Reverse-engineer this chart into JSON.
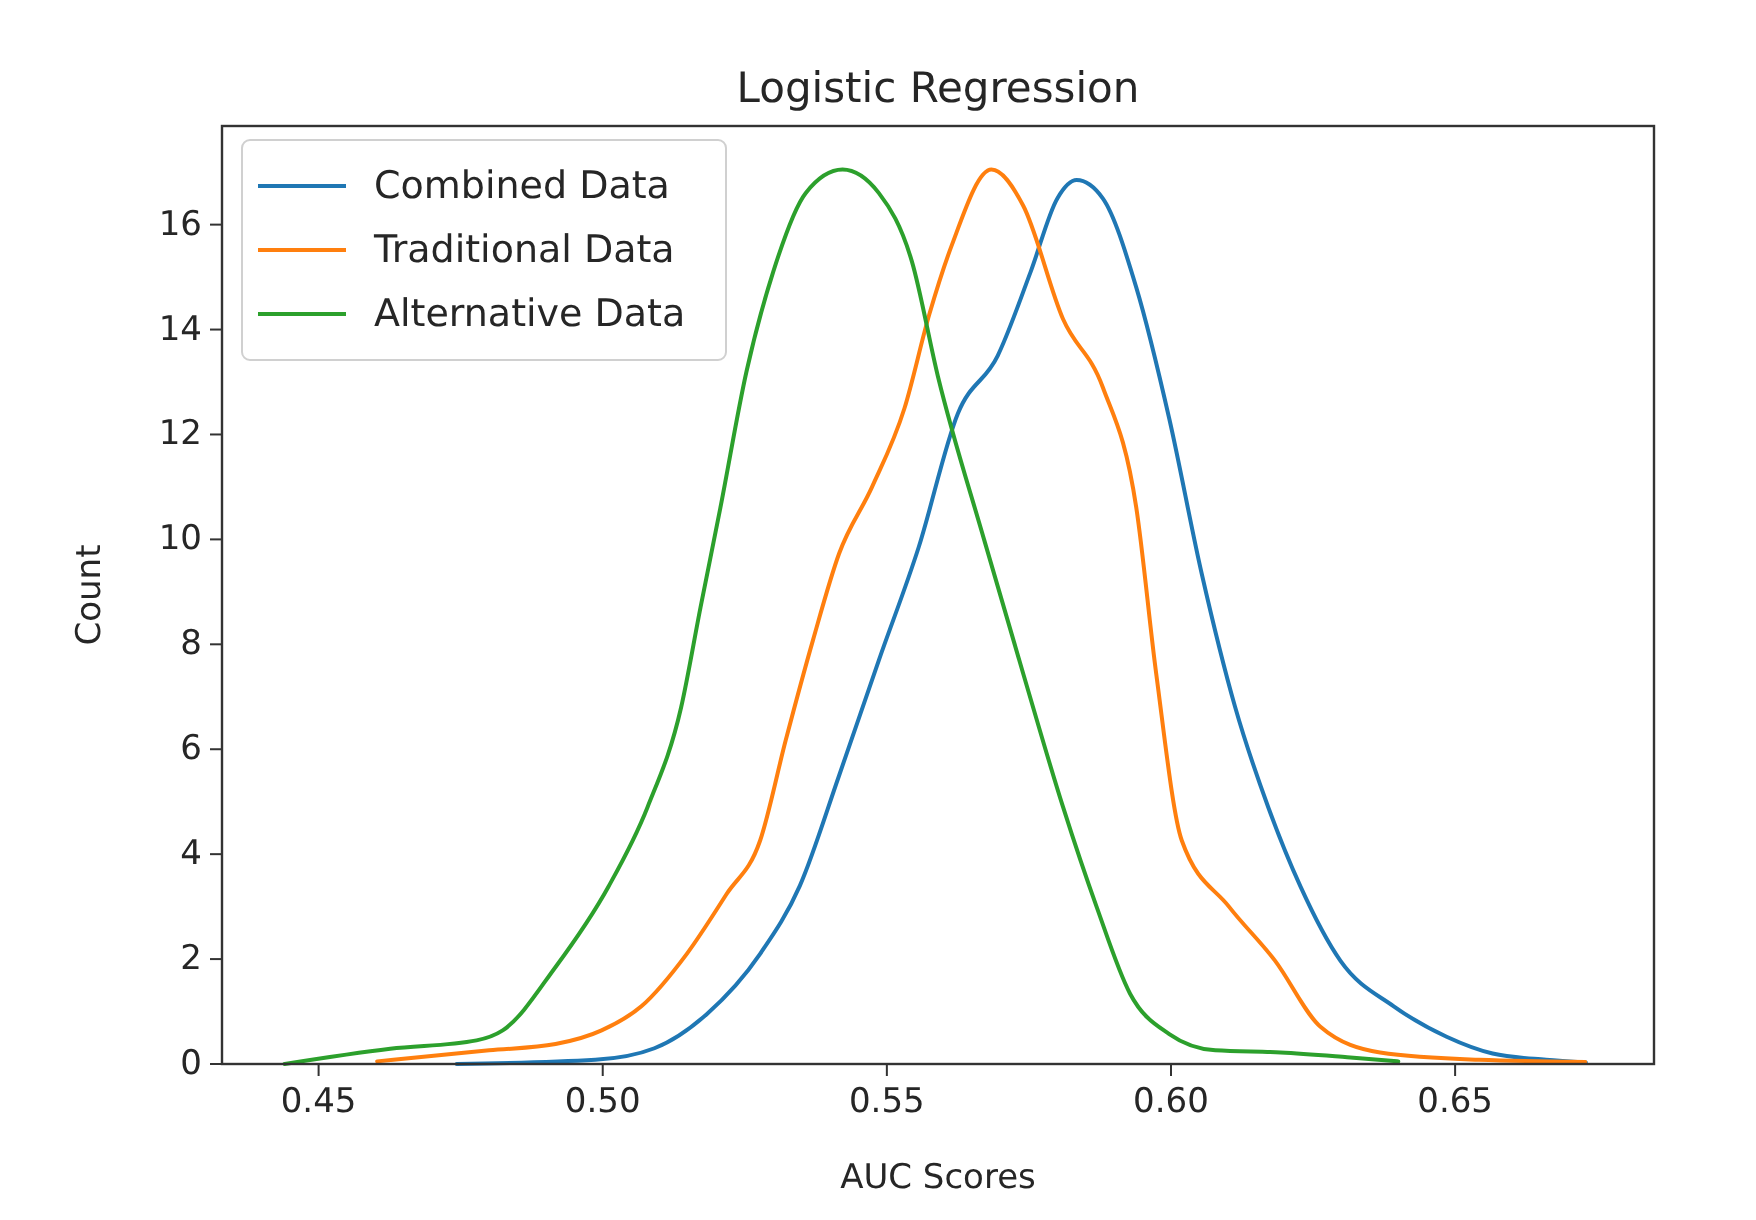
{
  "chart_data": {
    "type": "line",
    "title": "Logistic Regression",
    "xlabel": "AUC Scores",
    "ylabel": "Count",
    "xlim": [
      0.433,
      0.685
    ],
    "ylim": [
      0,
      17.88
    ],
    "xticks": [
      0.45,
      {
        "value": 0.5,
        "label": "0.50"
      },
      0.55,
      {
        "value": 0.6,
        "label": "0.60"
      },
      0.65
    ],
    "yticks": [
      0,
      2,
      4,
      6,
      8,
      10,
      12,
      14,
      16
    ],
    "grid": false,
    "legend": "top left",
    "marker": "none",
    "line_style": "solid",
    "series": [
      {
        "name": "Combined Data",
        "color": "#1f77b4",
        "x": [
          0.4743,
          0.4987,
          0.5091,
          0.5183,
          0.5277,
          0.5347,
          0.5416,
          0.5486,
          0.5556,
          0.5625,
          0.5695,
          0.5753,
          0.58,
          0.5834,
          0.588,
          0.5939,
          0.5997,
          0.6054,
          0.6113,
          0.6171,
          0.6228,
          0.6298,
          0.6392,
          0.6485,
          0.6566,
          0.666,
          0.673
        ],
        "values": [
          0,
          0.08,
          0.3,
          0.95,
          2.1,
          3.4,
          5.5,
          7.7,
          9.85,
          12.4,
          13.5,
          15.1,
          16.5,
          16.85,
          16.5,
          14.8,
          12.3,
          9.35,
          6.8,
          4.9,
          3.38,
          1.97,
          1.1,
          0.52,
          0.2,
          0.08,
          0.03
        ]
      },
      {
        "name": "Traditional Data",
        "color": "#ff7f0e",
        "x": [
          0.4603,
          0.48,
          0.4917,
          0.4998,
          0.5068,
          0.5148,
          0.5218,
          0.5277,
          0.5322,
          0.537,
          0.5416,
          0.5474,
          0.5531,
          0.5575,
          0.5614,
          0.5684,
          0.574,
          0.581,
          0.588,
          0.5939,
          0.5974,
          0.6019,
          0.6102,
          0.6183,
          0.6263,
          0.6368,
          0.6542,
          0.6729
        ],
        "values": [
          0.05,
          0.26,
          0.38,
          0.64,
          1.1,
          2.1,
          3.24,
          4.26,
          6.17,
          8.08,
          9.73,
          11,
          12.5,
          14.3,
          15.6,
          17.05,
          16.36,
          14.2,
          12.9,
          10.6,
          7.44,
          4.26,
          3,
          1.97,
          0.71,
          0.22,
          0.08,
          0.04
        ]
      },
      {
        "name": "Alternative Data",
        "color": "#2ca02c",
        "x": [
          0.444,
          0.4626,
          0.4778,
          0.4824,
          0.4917,
          0.501,
          0.5079,
          0.5138,
          0.5172,
          0.5207,
          0.5253,
          0.53,
          0.5357,
          0.5422,
          0.5486,
          0.5544,
          0.559,
          0.5671,
          0.574,
          0.581,
          0.5869,
          0.5928,
          0.5997,
          0.6078,
          0.6193,
          0.631,
          0.64
        ],
        "values": [
          0,
          0.29,
          0.45,
          0.64,
          1.85,
          3.38,
          4.9,
          6.8,
          8.7,
          10.6,
          13.2,
          15.1,
          16.6,
          17.05,
          16.6,
          15.3,
          13.1,
          10,
          7.44,
          4.9,
          3,
          1.34,
          0.57,
          0.26,
          0.22,
          0.13,
          0.05
        ]
      }
    ]
  }
}
